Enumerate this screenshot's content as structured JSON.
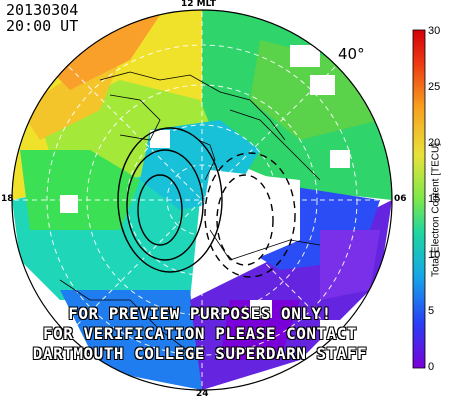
{
  "header": {
    "date": "20130304",
    "time": "20:00 UT"
  },
  "map": {
    "mlt_labels": {
      "top": "12 MLT",
      "left": "18",
      "right": "06",
      "bottom": "24"
    },
    "latitude_label": "40°"
  },
  "watermark": {
    "lines": [
      "FOR PREVIEW PURPOSES ONLY!",
      "FOR VERIFICATION PLEASE CONTACT",
      "DARTMOUTH COLLEGE SUPERDARN STAFF"
    ]
  },
  "colorbar": {
    "title": "Total Electron Content [TECU]",
    "min": 0,
    "max": 30,
    "ticks": [
      "30",
      "25",
      "20",
      "15",
      "10",
      "5",
      "0"
    ],
    "colormap": [
      "#7a00d9",
      "#2a3df5",
      "#16a6e8",
      "#1fd6a0",
      "#7de84a",
      "#e8e23a",
      "#f7a11f",
      "#ee3a12",
      "#d4000a"
    ]
  }
}
